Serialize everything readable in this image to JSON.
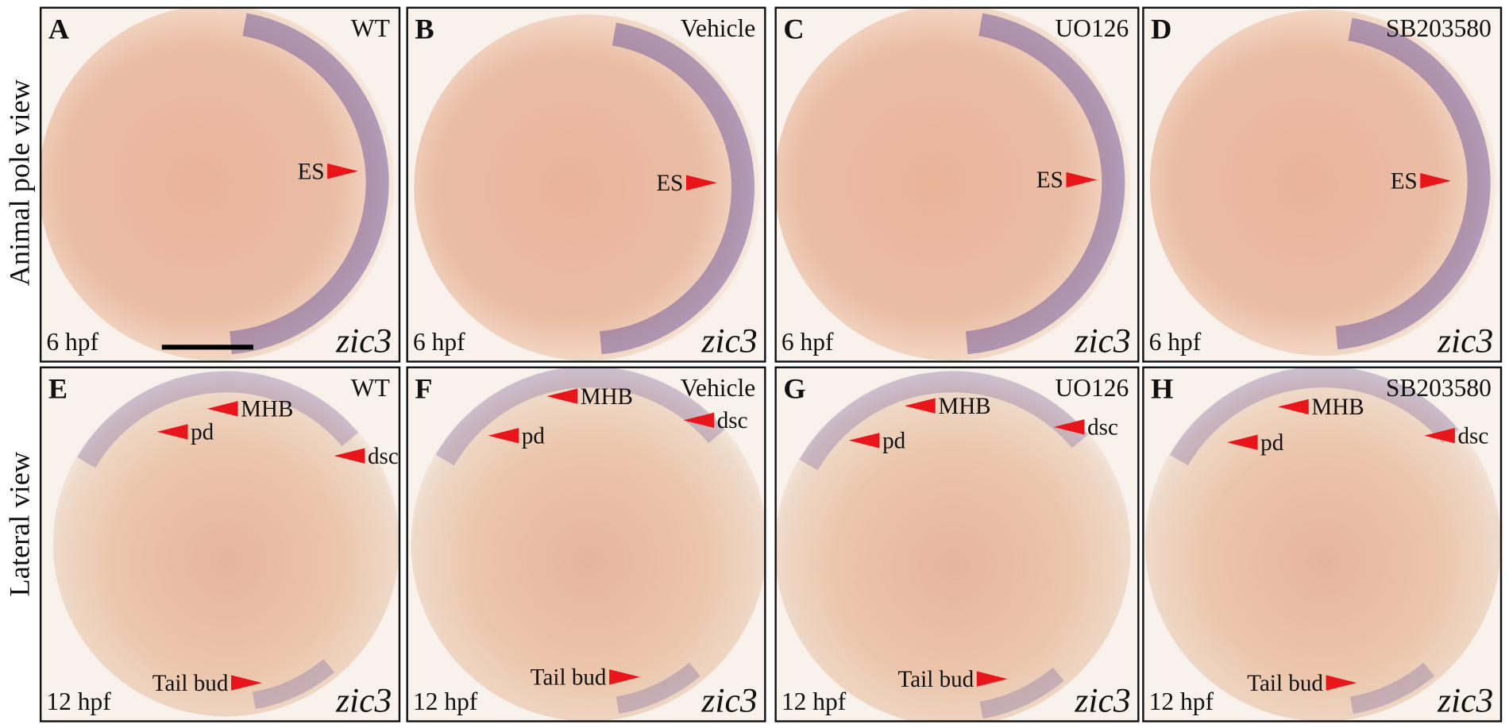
{
  "row_labels": [
    "Animal pole view",
    "Lateral view"
  ],
  "panels": [
    {
      "letter": "A",
      "condition": "WT",
      "stage": "6 hpf",
      "gene": "zic3",
      "annotations": [
        "ES"
      ]
    },
    {
      "letter": "B",
      "condition": "Vehicle",
      "stage": "6 hpf",
      "gene": "zic3",
      "annotations": [
        "ES"
      ]
    },
    {
      "letter": "C",
      "condition": "UO126",
      "stage": "6 hpf",
      "gene": "zic3",
      "annotations": [
        "ES"
      ]
    },
    {
      "letter": "D",
      "condition": "SB203580",
      "stage": "6 hpf",
      "gene": "zic3",
      "annotations": [
        "ES"
      ]
    },
    {
      "letter": "E",
      "condition": "WT",
      "stage": "12 hpf",
      "gene": "zic3",
      "annotations": [
        "MHB",
        "pd",
        "dsc",
        "Tail bud"
      ]
    },
    {
      "letter": "F",
      "condition": "Vehicle",
      "stage": "12 hpf",
      "gene": "zic3",
      "annotations": [
        "MHB",
        "pd",
        "dsc",
        "Tail bud"
      ]
    },
    {
      "letter": "G",
      "condition": "UO126",
      "stage": "12 hpf",
      "gene": "zic3",
      "annotations": [
        "MHB",
        "pd",
        "dsc",
        "Tail bud"
      ]
    },
    {
      "letter": "H",
      "condition": "SB203580",
      "stage": "12 hpf",
      "gene": "zic3",
      "annotations": [
        "MHB",
        "pd",
        "dsc",
        "Tail bud"
      ]
    }
  ]
}
